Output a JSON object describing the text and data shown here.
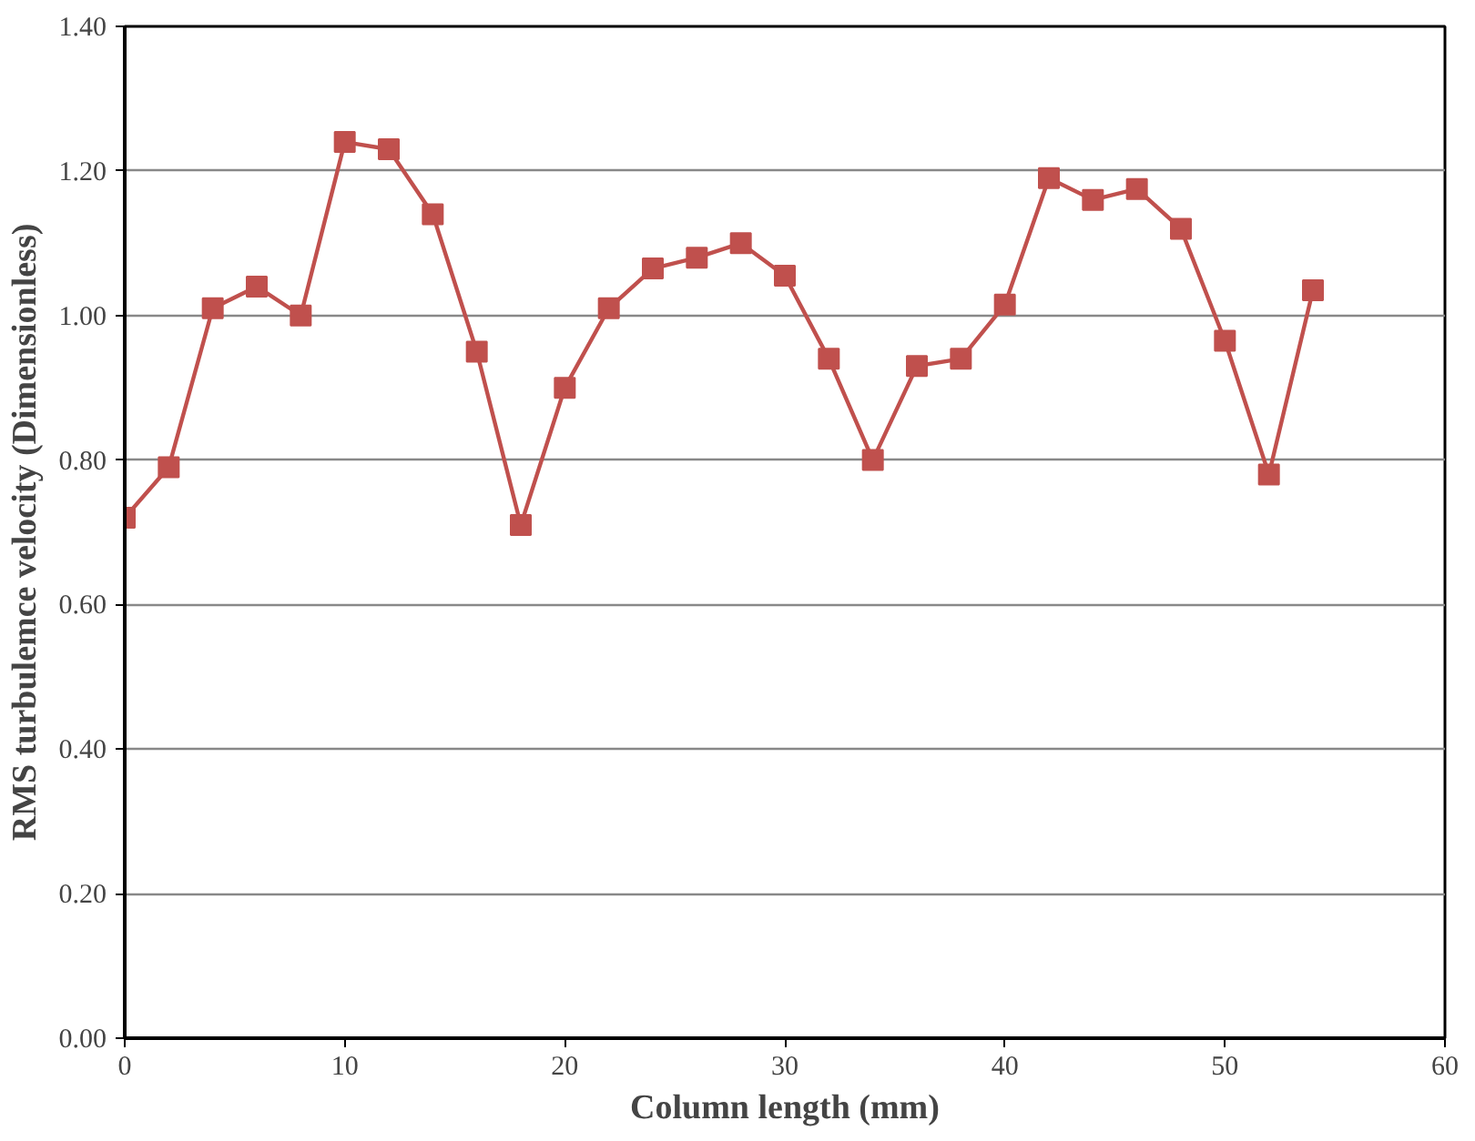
{
  "chart_data": {
    "type": "line",
    "xlabel": "Column length (mm)",
    "ylabel": "RMS turbulemce velocity (Dimensionless)",
    "x": [
      0,
      2,
      4,
      6,
      8,
      10,
      12,
      14,
      16,
      18,
      20,
      22,
      24,
      26,
      28,
      30,
      32,
      34,
      36,
      38,
      40,
      42,
      44,
      46,
      48,
      50,
      52,
      54
    ],
    "series": [
      {
        "color": "#c0504d",
        "values": [
          0.72,
          0.79,
          1.01,
          1.04,
          1.0,
          1.24,
          1.23,
          1.14,
          0.95,
          0.71,
          0.9,
          1.01,
          1.065,
          1.08,
          1.1,
          1.055,
          0.94,
          0.8,
          0.93,
          0.94,
          1.015,
          1.19,
          1.16,
          1.175,
          1.12,
          0.965,
          0.78,
          1.035
        ]
      }
    ],
    "xlim": [
      0,
      60
    ],
    "xticks": [
      0,
      10,
      20,
      30,
      40,
      50,
      60
    ],
    "ylim": [
      0,
      1.4
    ],
    "yticks": [
      {
        "value": 0,
        "label": "0.00"
      },
      {
        "value": 0.2,
        "label": "0.20"
      },
      {
        "value": 0.4,
        "label": "0.40"
      },
      {
        "value": 0.6,
        "label": "0.60"
      },
      {
        "value": 0.8,
        "label": "0.80"
      },
      {
        "value": 1.0,
        "label": "1.00"
      },
      {
        "value": 1.2,
        "label": "1.20"
      },
      {
        "value": 1.4,
        "label": "1.40"
      }
    ],
    "grid": "y",
    "marker": "square",
    "line_style": "solid"
  }
}
